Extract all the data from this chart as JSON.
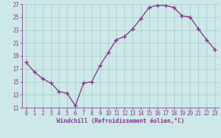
{
  "x": [
    0,
    1,
    2,
    3,
    4,
    5,
    6,
    7,
    8,
    9,
    10,
    11,
    12,
    13,
    14,
    15,
    16,
    17,
    18,
    19,
    20,
    21,
    22,
    23
  ],
  "y": [
    18.0,
    16.5,
    15.5,
    14.8,
    13.5,
    13.2,
    11.3,
    14.8,
    15.0,
    17.5,
    19.5,
    21.5,
    22.0,
    23.2,
    24.8,
    26.5,
    26.8,
    26.8,
    26.5,
    25.2,
    25.0,
    23.2,
    21.5,
    20.0
  ],
  "line_color": "#883388",
  "marker": "+",
  "markersize": 4,
  "linewidth": 1.0,
  "xlabel": "Windchill (Refroidissement éolien,°C)",
  "ylim": [
    11,
    27
  ],
  "yticks": [
    11,
    13,
    15,
    17,
    19,
    21,
    23,
    25,
    27
  ],
  "xticks": [
    0,
    1,
    2,
    3,
    4,
    5,
    6,
    7,
    8,
    9,
    10,
    11,
    12,
    13,
    14,
    15,
    16,
    17,
    18,
    19,
    20,
    21,
    22,
    23
  ],
  "bg_color": "#cce8e8",
  "grid_color": "#aacccc",
  "spine_color": "#883388",
  "tick_color": "#883388",
  "label_color": "#883388",
  "font_family": "monospace",
  "tick_fontsize": 5.5,
  "xlabel_fontsize": 6.0
}
